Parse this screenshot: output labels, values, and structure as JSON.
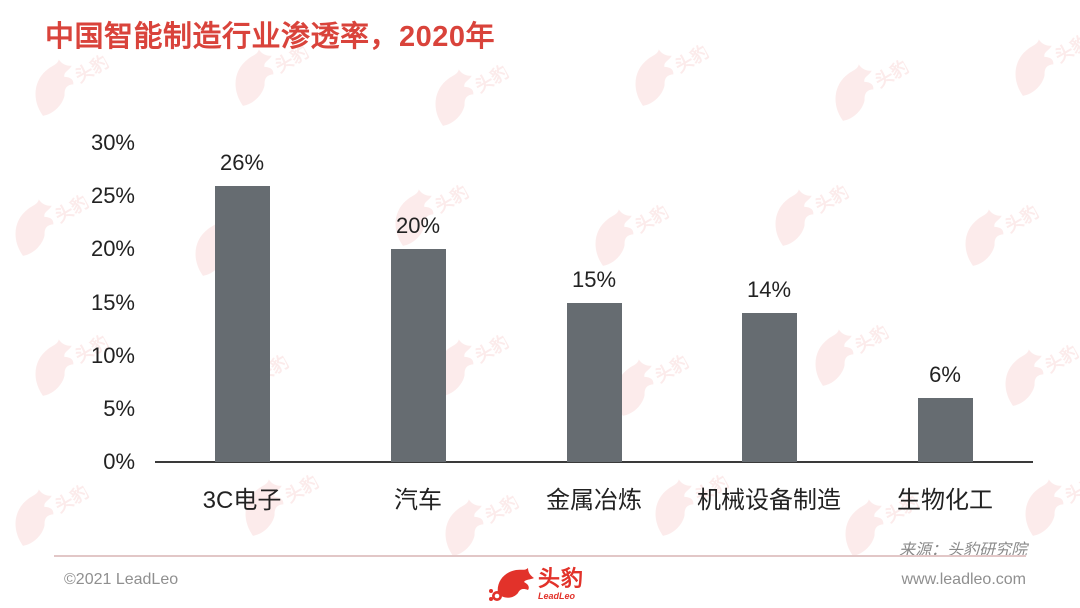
{
  "title": "中国智能制造行业渗透率，2020年",
  "colors": {
    "title": "#d9433b",
    "bar": "#666c71",
    "axis": "#3a3a3a",
    "brand": "#e2322a",
    "footer_line": "#e2c7c7"
  },
  "chart_data": {
    "type": "bar",
    "title": "中国智能制造行业渗透率，2020年",
    "xlabel": "",
    "ylabel": "",
    "categories": [
      "3C电子",
      "汽车",
      "金属冶炼",
      "机械设备制造",
      "生物化工"
    ],
    "values": [
      26,
      20,
      15,
      14,
      6
    ],
    "value_labels": [
      "26%",
      "20%",
      "15%",
      "14%",
      "6%"
    ],
    "unit": "%",
    "ylim": [
      0,
      30
    ],
    "y_ticks": [
      "0%",
      "5%",
      "10%",
      "15%",
      "20%",
      "25%",
      "30%"
    ],
    "grid": false,
    "legend": null
  },
  "source": "来源：头豹研究院",
  "footer": {
    "copyright": "©2021 LeadLeo",
    "website": "www.leadleo.com",
    "logo_cn": "头豹",
    "logo_en": "LeadLeo"
  }
}
